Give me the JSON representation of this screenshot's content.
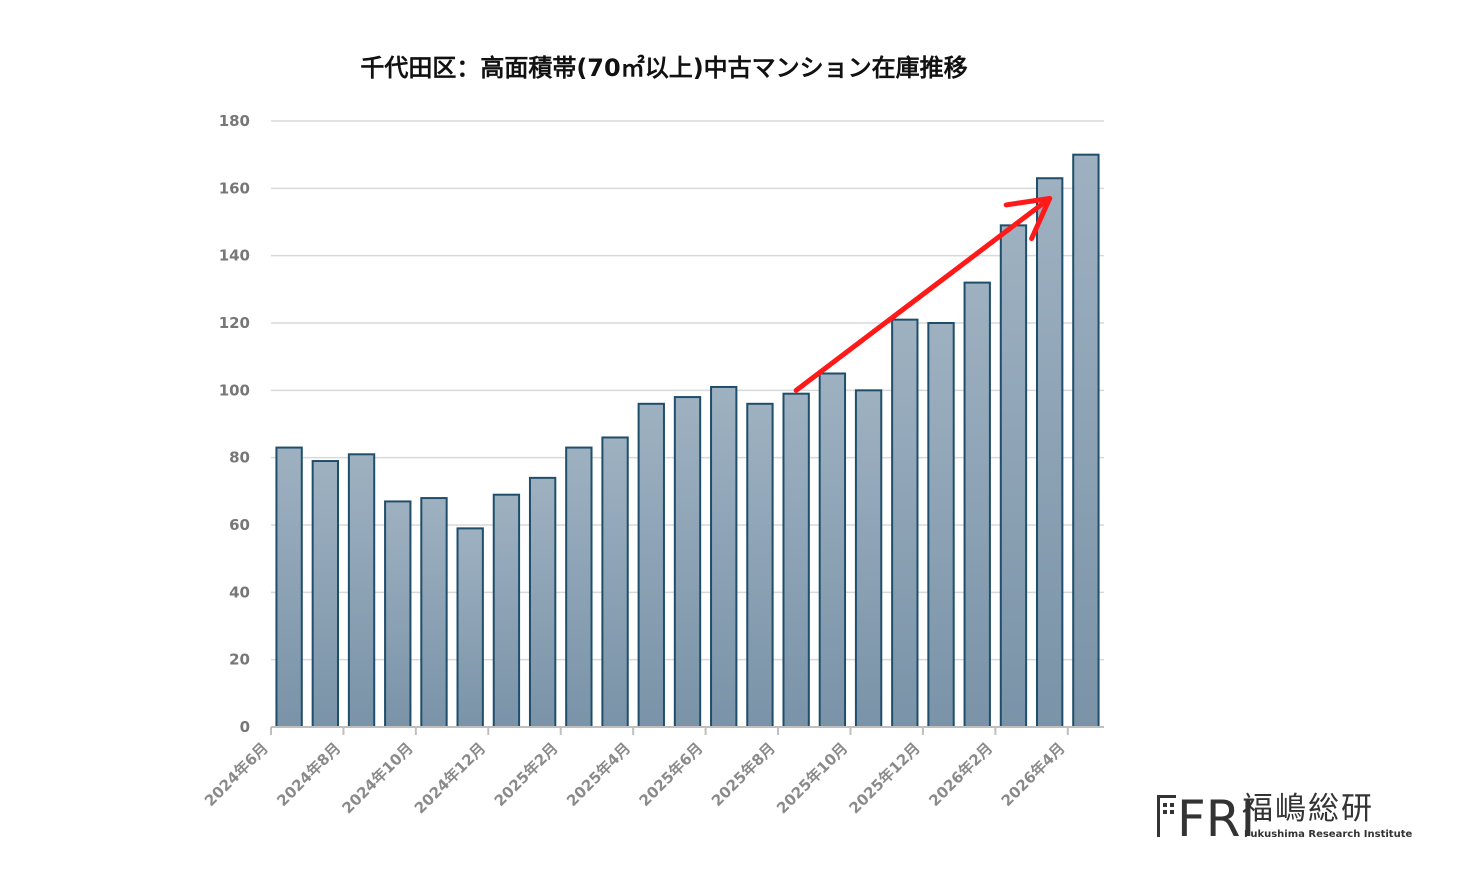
{
  "chart_data": {
    "type": "bar",
    "title": "千代田区：高面積帯(70㎡以上)中古マンション在庫推移",
    "xlabel": "",
    "ylabel": "",
    "ylim": [
      0,
      180
    ],
    "yticks": [
      0,
      20,
      40,
      60,
      80,
      100,
      120,
      140,
      160,
      180
    ],
    "grid": true,
    "categories": [
      "2024年6月",
      "2024年7月",
      "2024年8月",
      "2024年9月",
      "2024年10月",
      "2024年11月",
      "2024年12月",
      "2025年1月",
      "2025年2月",
      "2025年3月",
      "2025年4月",
      "2025年5月",
      "2025年6月",
      "2025年7月",
      "2025年8月",
      "2025年9月",
      "2025年10月",
      "2025年11月",
      "2025年12月",
      "2026年1月",
      "2026年2月",
      "2026年3月",
      "2026年4月"
    ],
    "x_tick_labels": [
      "2024年6月",
      "2024年8月",
      "2024年10月",
      "2024年12月",
      "2025年2月",
      "2025年4月",
      "2025年6月",
      "2025年8月",
      "2025年10月",
      "2025年12月",
      "2026年2月",
      "2026年4月"
    ],
    "values": [
      83,
      79,
      81,
      67,
      68,
      59,
      69,
      74,
      83,
      86,
      96,
      98,
      101,
      96,
      99,
      105,
      100,
      121,
      120,
      132,
      149,
      163,
      170
    ],
    "annotations": [
      {
        "type": "arrow",
        "color": "#ff1a1a",
        "from": {
          "x": "2025年8月",
          "y": 100
        },
        "to": {
          "x": "2026年3月",
          "y": 157
        }
      }
    ],
    "bar_fill_top": "#9eb1c1",
    "bar_fill_bottom": "#7a93a8",
    "bar_stroke": "#1f4e6b",
    "grid_color": "#d9d9d9"
  },
  "logo": {
    "letters": "FRI",
    "kanji": "福嶋総研",
    "subtitle": "Fukushima Research Institute"
  }
}
